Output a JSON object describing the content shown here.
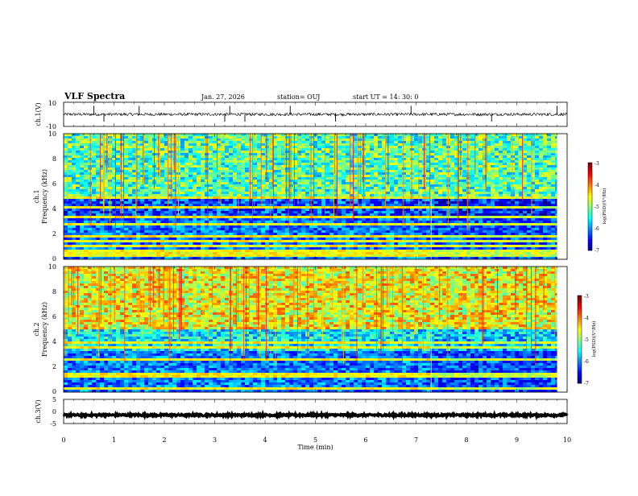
{
  "header": {
    "title": "VLF Spectra",
    "date": "Jan. 27, 2026",
    "station": "station= OUJ",
    "start_ut": "start  UT =   14: 30: 0"
  },
  "chart_data": [
    {
      "id": "ch1-waveform",
      "type": "line",
      "ylabel": "ch.1(V)",
      "ylim": [
        -10,
        10
      ],
      "yticks": [
        "10",
        "-10"
      ],
      "xlim": [
        0,
        10
      ],
      "baseline": 0,
      "noise_amplitude": 1.2,
      "spike_times_min": [
        0.6,
        0.8,
        1.5,
        3.2,
        3.3,
        3.6,
        4.5,
        5.4,
        6.9,
        8.5,
        9.8
      ]
    },
    {
      "id": "ch1-spectrogram",
      "type": "heatmap",
      "ylabel": "ch.1",
      "ylabel2": "Frequency (kHz)",
      "ylim": [
        0,
        10
      ],
      "yticks": [
        "0",
        "2",
        "4",
        "6",
        "8",
        "10"
      ],
      "xlim": [
        0,
        10
      ],
      "colorbar": {
        "label": "log(PSD)(V²/Hz)",
        "range": [
          -7,
          -3
        ],
        "ticks": [
          "-3",
          "-4",
          "-5",
          "-6",
          "-7"
        ]
      },
      "bands_khz": [
        0.3,
        0.6,
        1.1,
        1.5,
        1.8,
        2.8,
        3.4,
        4.2,
        4.9
      ],
      "transition_min": 7.3
    },
    {
      "id": "ch2-spectrogram",
      "type": "heatmap",
      "ylabel": "ch.2",
      "ylabel2": "Frequency (kHz)",
      "ylim": [
        0,
        10
      ],
      "yticks": [
        "0",
        "2",
        "4",
        "6",
        "8",
        "10"
      ],
      "xlim": [
        0,
        10
      ],
      "colorbar": {
        "label": "log(PSD)(V²/Hz)",
        "range": [
          -7,
          -3
        ],
        "ticks": [
          "-3",
          "-4",
          "-5",
          "-6",
          "-7"
        ]
      },
      "bands_khz": [
        0.3,
        1.2,
        1.5,
        2.6,
        3.5,
        3.9
      ],
      "transition_min": 7.3
    },
    {
      "id": "ch3-waveform",
      "type": "line",
      "ylabel": "ch.3(V)",
      "ylim": [
        -5,
        5
      ],
      "yticks": [
        "5",
        "0",
        "-5"
      ],
      "xlim": [
        0,
        10
      ],
      "baseline": -1.5,
      "noise_amplitude": 0.4
    }
  ],
  "xaxis": {
    "label": "Time  (min)",
    "ticks": [
      "0",
      "1",
      "2",
      "3",
      "4",
      "5",
      "6",
      "7",
      "8",
      "9",
      "10"
    ]
  }
}
